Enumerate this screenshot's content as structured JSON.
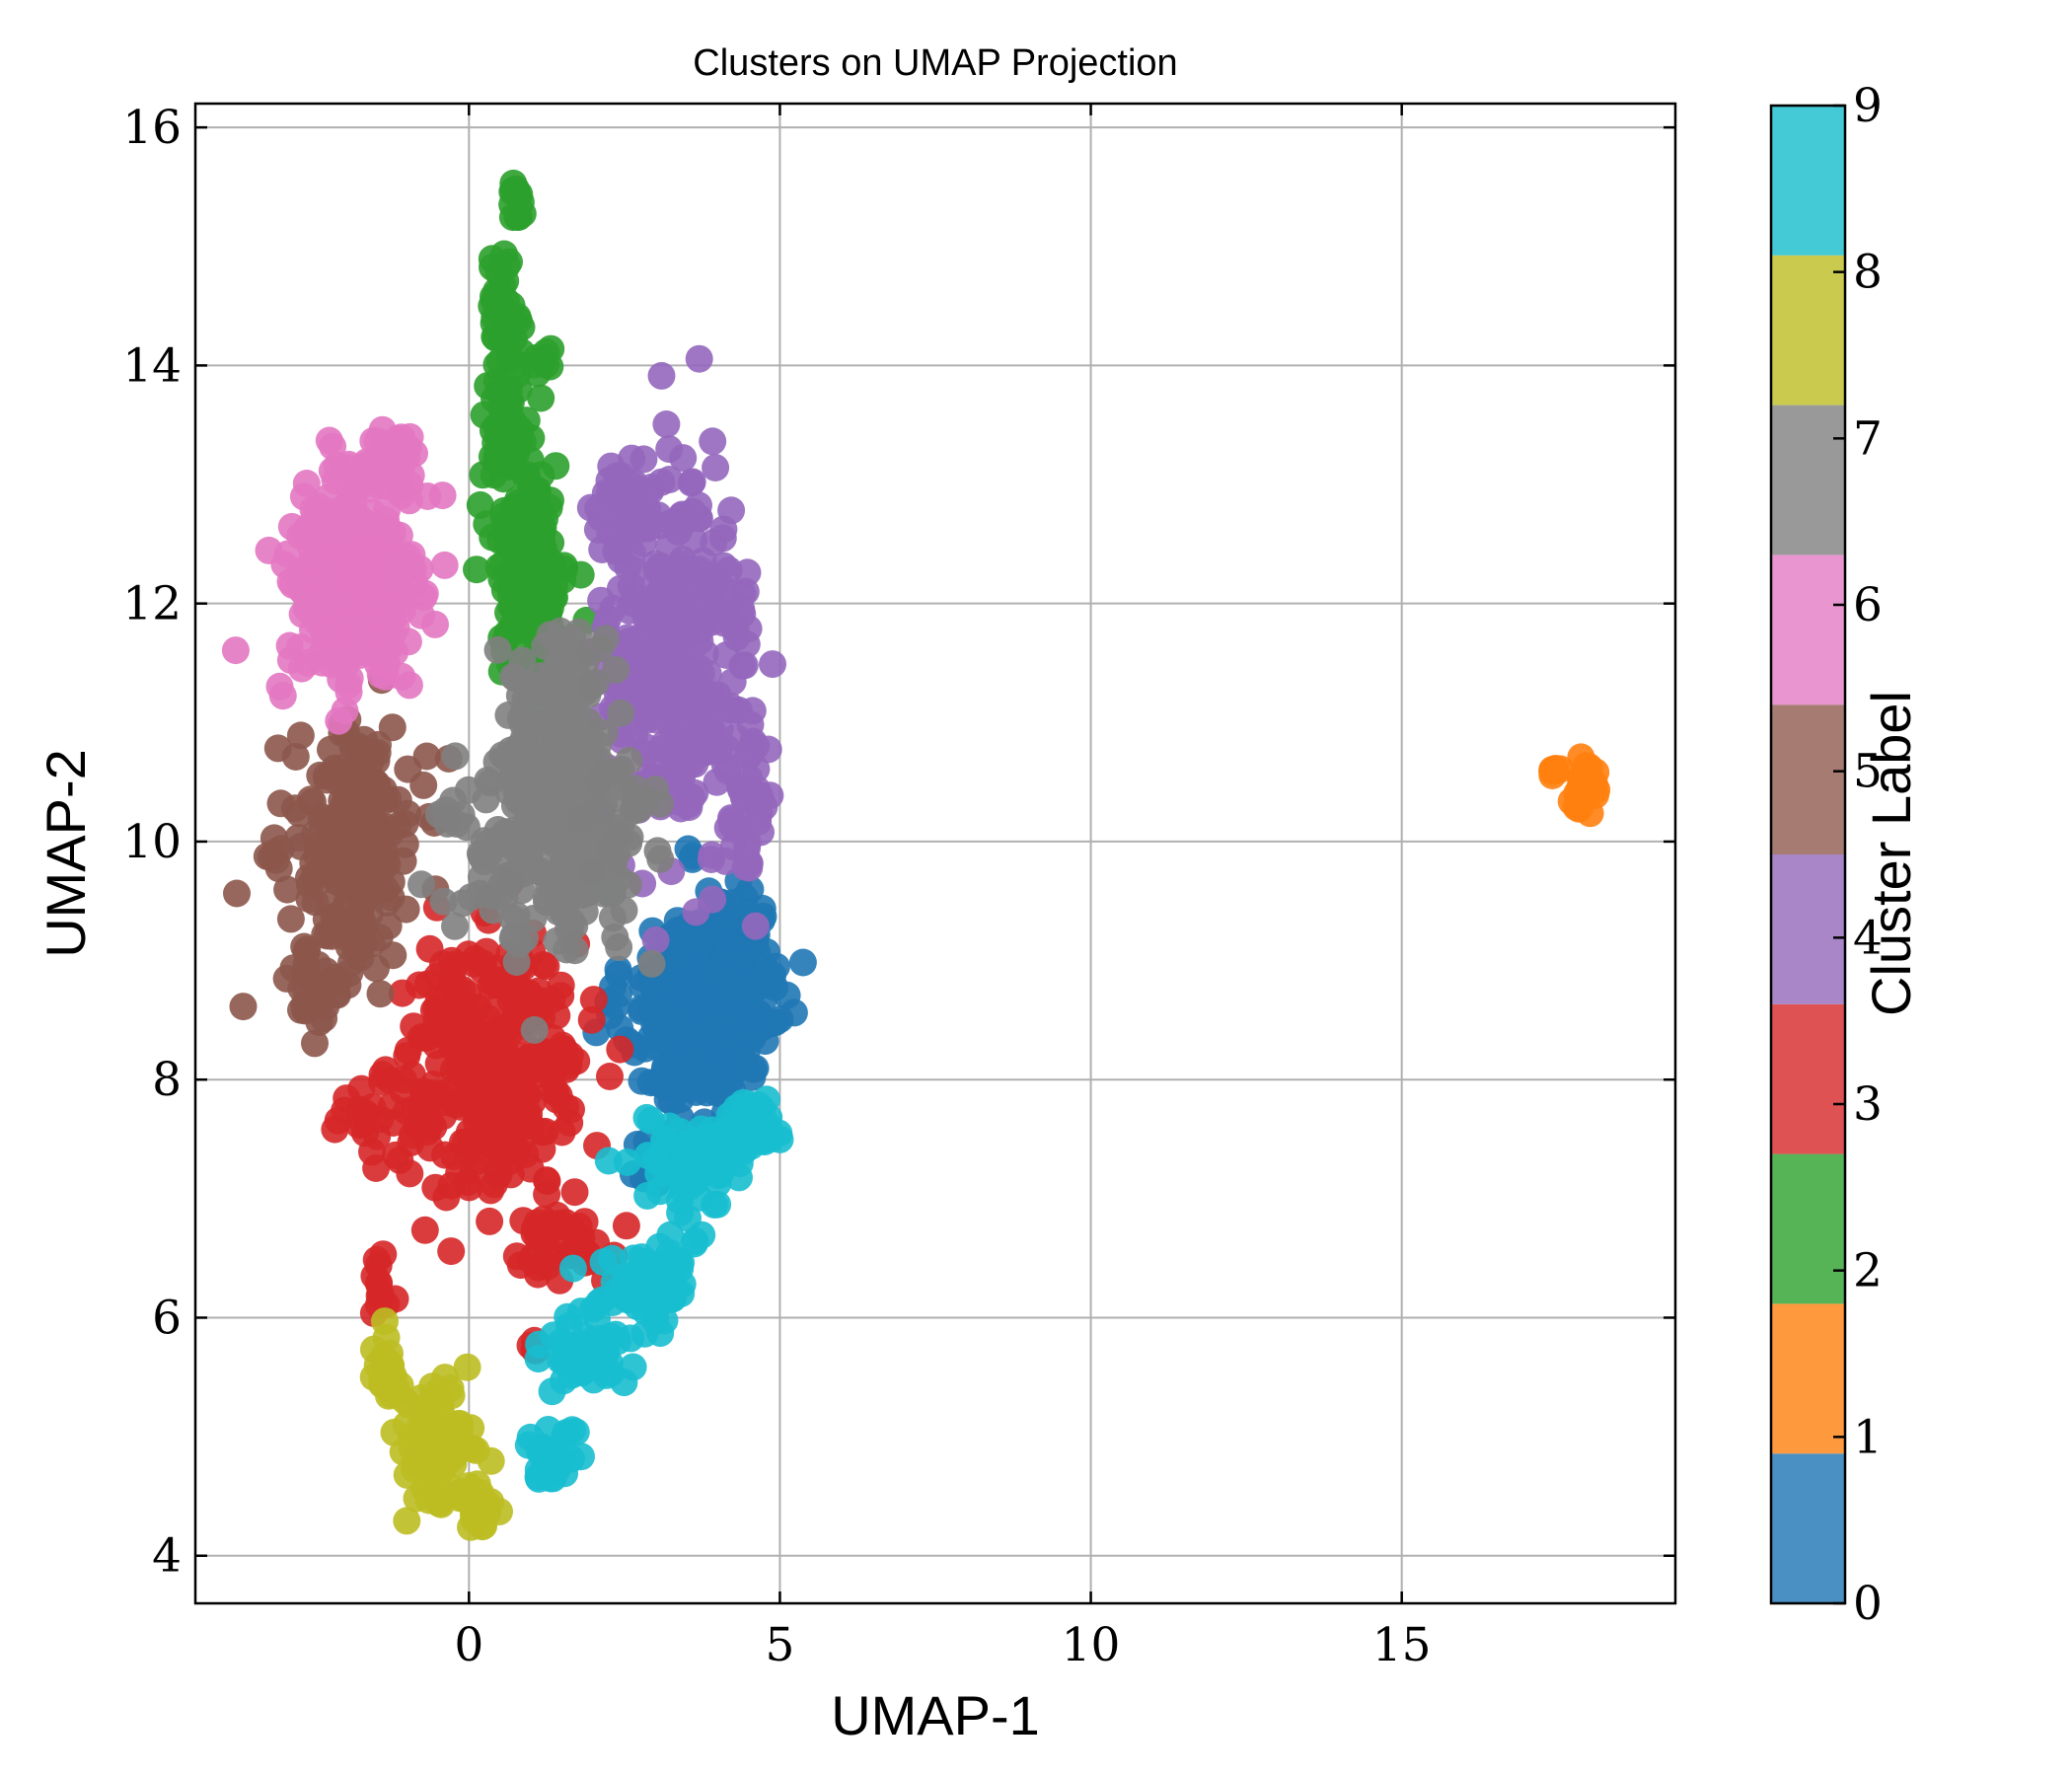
{
  "chart_data": {
    "type": "scatter",
    "title": "Clusters on UMAP Projection",
    "xlabel": "UMAP-1",
    "ylabel": "UMAP-2",
    "xlim": [
      -4.4,
      19.4
    ],
    "ylim": [
      3.6,
      16.2
    ],
    "xticks": [
      0,
      5,
      10,
      15
    ],
    "yticks": [
      4,
      6,
      8,
      10,
      12,
      14,
      16
    ],
    "grid": true,
    "colorbar": {
      "label": "Cluster Label",
      "range": [
        0,
        9
      ],
      "ticks": [
        0,
        1,
        2,
        3,
        4,
        5,
        6,
        7,
        8,
        9
      ],
      "colors": [
        "#4a90c2",
        "#ff993e",
        "#56b356",
        "#df5253",
        "#a886c8",
        "#a67b72",
        "#e995cf",
        "#999999",
        "#c9ca4e",
        "#44c9d6"
      ]
    },
    "series": [
      {
        "cluster": 0,
        "color": "#1f77b4",
        "blobs": [
          [
            3.6,
            8.6,
            1.0,
            0.9,
            240
          ],
          [
            4.4,
            9.2,
            0.45,
            0.45,
            40
          ],
          [
            4.6,
            8.5,
            0.45,
            0.35,
            40
          ],
          [
            3.0,
            7.3,
            0.35,
            0.3,
            15
          ]
        ]
      },
      {
        "cluster": 1,
        "color": "#ff7f0e",
        "blobs": [
          [
            17.95,
            10.45,
            0.25,
            0.18,
            30
          ],
          [
            17.4,
            10.6,
            0.15,
            0.05,
            6
          ]
        ]
      },
      {
        "cluster": 2,
        "color": "#2ca02c",
        "blobs": [
          [
            1.0,
            12.3,
            0.55,
            0.9,
            180
          ],
          [
            0.6,
            13.5,
            0.35,
            0.4,
            40
          ],
          [
            0.55,
            14.5,
            0.25,
            0.45,
            35
          ],
          [
            0.75,
            15.4,
            0.12,
            0.15,
            12
          ],
          [
            1.2,
            14.0,
            0.15,
            0.1,
            8
          ]
        ]
      },
      {
        "cluster": 3,
        "color": "#d62728",
        "blobs": [
          [
            0.4,
            8.1,
            1.3,
            1.0,
            320
          ],
          [
            -1.6,
            7.7,
            0.5,
            0.3,
            25
          ],
          [
            -1.4,
            6.3,
            0.25,
            0.35,
            12
          ],
          [
            1.4,
            6.6,
            0.8,
            0.35,
            45
          ],
          [
            1.05,
            5.7,
            0.12,
            0.1,
            5
          ]
        ]
      },
      {
        "cluster": 4,
        "color": "#9467bd",
        "blobs": [
          [
            3.3,
            11.5,
            1.1,
            1.4,
            320
          ],
          [
            4.5,
            10.3,
            0.35,
            0.6,
            40
          ],
          [
            2.6,
            12.8,
            0.6,
            0.3,
            40
          ]
        ]
      },
      {
        "cluster": 5,
        "color": "#8c564b",
        "blobs": [
          [
            -1.8,
            10.0,
            0.85,
            0.9,
            220
          ],
          [
            -2.5,
            8.8,
            0.45,
            0.4,
            30
          ],
          [
            -3.2,
            9.9,
            0.2,
            0.1,
            6
          ]
        ]
      },
      {
        "cluster": 6,
        "color": "#e377c2",
        "blobs": [
          [
            -1.9,
            12.1,
            1.05,
            0.9,
            260
          ],
          [
            -1.3,
            13.1,
            0.6,
            0.3,
            40
          ]
        ]
      },
      {
        "cluster": 7,
        "color": "#7f7f7f",
        "blobs": [
          [
            1.4,
            10.2,
            1.3,
            1.0,
            320
          ],
          [
            1.7,
            11.5,
            0.6,
            0.3,
            30
          ]
        ]
      },
      {
        "cluster": 8,
        "color": "#bcbd22",
        "blobs": [
          [
            -0.6,
            4.9,
            0.55,
            0.45,
            90
          ],
          [
            -1.3,
            5.6,
            0.2,
            0.35,
            25
          ],
          [
            0.2,
            4.4,
            0.2,
            0.15,
            20
          ]
        ]
      },
      {
        "cluster": 9,
        "color": "#17becf",
        "blobs": [
          [
            3.7,
            7.3,
            0.8,
            0.35,
            70
          ],
          [
            2.9,
            6.3,
            0.7,
            0.35,
            70
          ],
          [
            1.8,
            5.7,
            0.6,
            0.3,
            55
          ],
          [
            1.3,
            4.9,
            0.35,
            0.25,
            25
          ],
          [
            4.6,
            7.6,
            0.35,
            0.3,
            25
          ]
        ]
      }
    ]
  }
}
